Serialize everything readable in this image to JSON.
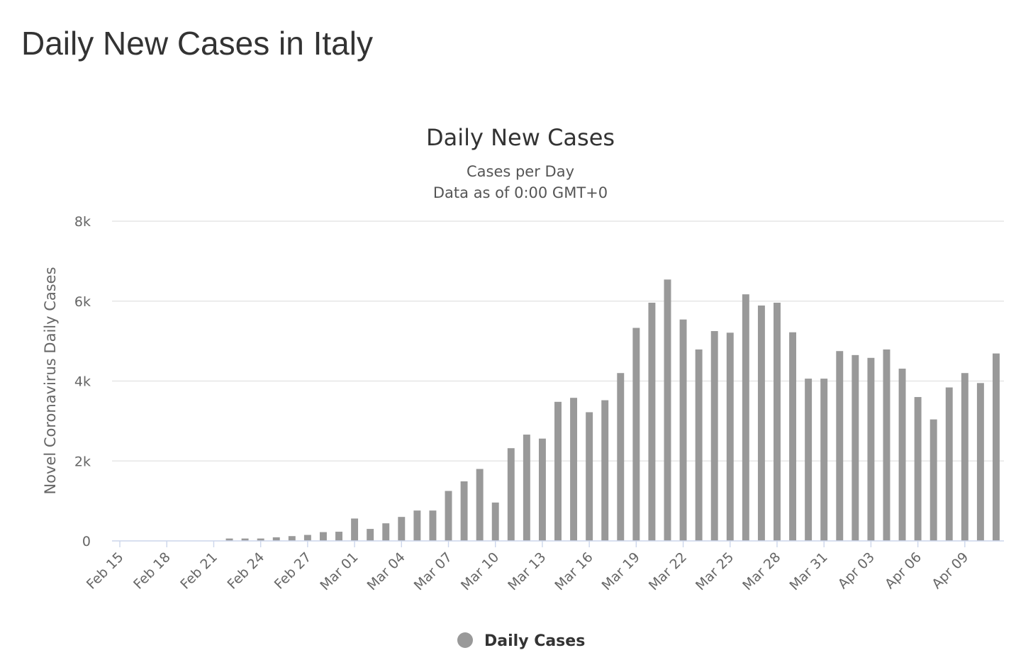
{
  "page": {
    "heading": "Daily New Cases in Italy"
  },
  "colors": {
    "bar": "#999999",
    "gridline": "#e6e6e6",
    "text": "#333333"
  },
  "chart_data": {
    "type": "bar",
    "title": "Daily New Cases",
    "subtitle_lines": [
      "Cases per Day",
      "Data as of 0:00 GMT+0"
    ],
    "xlabel": "",
    "ylabel": "Novel Coronavirus Daily Cases",
    "ylim": [
      0,
      8000
    ],
    "y_ticks": [
      0,
      2000,
      4000,
      6000,
      8000
    ],
    "y_tick_labels": [
      "0",
      "2k",
      "4k",
      "6k",
      "8k"
    ],
    "grid": true,
    "legend_position": "bottom-center",
    "x_tick_labels": [
      "Feb 15",
      "Feb 18",
      "Feb 21",
      "Feb 24",
      "Feb 27",
      "Mar 01",
      "Mar 04",
      "Mar 07",
      "Mar 10",
      "Mar 13",
      "Mar 16",
      "Mar 19",
      "Mar 22",
      "Mar 25",
      "Mar 28",
      "Mar 31",
      "Apr 03",
      "Apr 06",
      "Apr 09"
    ],
    "categories": [
      "Feb 15",
      "Feb 16",
      "Feb 17",
      "Feb 18",
      "Feb 19",
      "Feb 20",
      "Feb 21",
      "Feb 22",
      "Feb 23",
      "Feb 24",
      "Feb 25",
      "Feb 26",
      "Feb 27",
      "Feb 28",
      "Feb 29",
      "Mar 01",
      "Mar 02",
      "Mar 03",
      "Mar 04",
      "Mar 05",
      "Mar 06",
      "Mar 07",
      "Mar 08",
      "Mar 09",
      "Mar 10",
      "Mar 11",
      "Mar 12",
      "Mar 13",
      "Mar 14",
      "Mar 15",
      "Mar 16",
      "Mar 17",
      "Mar 18",
      "Mar 19",
      "Mar 20",
      "Mar 21",
      "Mar 22",
      "Mar 23",
      "Mar 24",
      "Mar 25",
      "Mar 26",
      "Mar 27",
      "Mar 28",
      "Mar 29",
      "Mar 30",
      "Mar 31",
      "Apr 01",
      "Apr 02",
      "Apr 03",
      "Apr 04",
      "Apr 05",
      "Apr 06",
      "Apr 07",
      "Apr 08",
      "Apr 09",
      "Apr 10",
      "Apr 11"
    ],
    "series": [
      {
        "name": "Daily Cases",
        "color": "#999999",
        "values": [
          0,
          0,
          0,
          0,
          0,
          0,
          0,
          60,
          60,
          60,
          90,
          120,
          150,
          220,
          230,
          560,
          300,
          440,
          600,
          760,
          760,
          1250,
          1490,
          1800,
          960,
          2320,
          2660,
          2560,
          3480,
          3580,
          3220,
          3520,
          4200,
          5330,
          5960,
          6540,
          5540,
          4790,
          5250,
          5210,
          6170,
          5890,
          5960,
          5220,
          4060,
          4060,
          4750,
          4650,
          4580,
          4790,
          4310,
          3600,
          3040,
          3840,
          4200,
          3950,
          4690
        ]
      }
    ]
  }
}
